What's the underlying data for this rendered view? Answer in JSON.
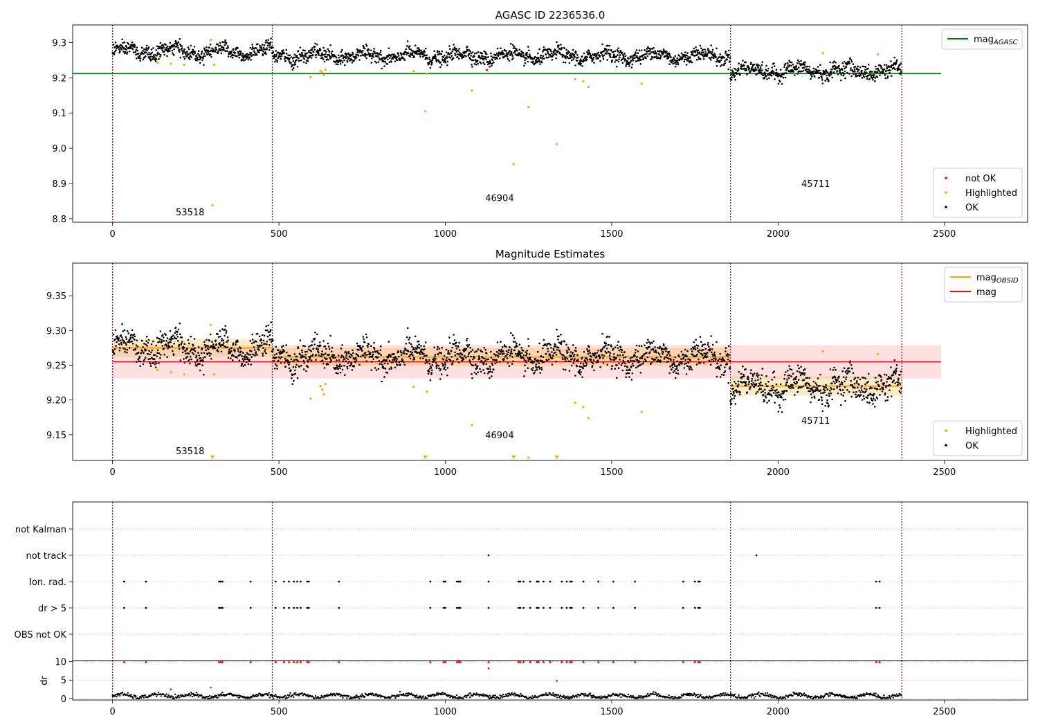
{
  "chart_data": [
    {
      "type": "scatter",
      "title": "AGASC ID 2236536.0",
      "ylim": [
        8.79,
        9.35
      ],
      "yticks": [
        8.8,
        8.9,
        9.0,
        9.1,
        9.2,
        9.3
      ],
      "xlim": [
        -120,
        2750
      ],
      "xticks": [
        0,
        500,
        1000,
        1500,
        2000,
        2500
      ],
      "grid": false,
      "mag_agasc": 9.212,
      "segments": [
        {
          "obsid": "53518",
          "start": 0,
          "end": 480,
          "mean": 9.275,
          "std": 0.013
        },
        {
          "obsid": "46904",
          "start": 480,
          "end": 1857,
          "mean": 9.262,
          "std": 0.013
        },
        {
          "obsid": "45711",
          "start": 1857,
          "end": 2372,
          "mean": 9.22,
          "std": 0.014
        }
      ],
      "boundaries": [
        0,
        480,
        1857,
        2372
      ],
      "obsid_labels": [
        {
          "text": "53518",
          "x": 190,
          "y": 8.81
        },
        {
          "text": "46904",
          "x": 1120,
          "y": 8.85
        },
        {
          "text": "45711",
          "x": 2070,
          "y": 8.89
        }
      ],
      "highlighted": [
        {
          "x": 135,
          "y": 9.243
        },
        {
          "x": 175,
          "y": 9.24
        },
        {
          "x": 215,
          "y": 9.237
        },
        {
          "x": 295,
          "y": 9.308
        },
        {
          "x": 300,
          "y": 8.838
        },
        {
          "x": 305,
          "y": 9.237
        },
        {
          "x": 595,
          "y": 9.202
        },
        {
          "x": 625,
          "y": 9.22
        },
        {
          "x": 630,
          "y": 9.215
        },
        {
          "x": 635,
          "y": 9.208
        },
        {
          "x": 640,
          "y": 9.223
        },
        {
          "x": 905,
          "y": 9.219
        },
        {
          "x": 940,
          "y": 9.105
        },
        {
          "x": 945,
          "y": 9.212
        },
        {
          "x": 1080,
          "y": 9.164
        },
        {
          "x": 1205,
          "y": 8.955
        },
        {
          "x": 1250,
          "y": 9.117
        },
        {
          "x": 1335,
          "y": 9.012
        },
        {
          "x": 1390,
          "y": 9.196
        },
        {
          "x": 1415,
          "y": 9.19
        },
        {
          "x": 1430,
          "y": 9.174
        },
        {
          "x": 1590,
          "y": 9.183
        },
        {
          "x": 2135,
          "y": 9.27
        },
        {
          "x": 2300,
          "y": 9.266
        }
      ],
      "not_ok": [
        {
          "x": 1125,
          "y": 9.222
        }
      ],
      "legends": [
        {
          "position": "upper-right",
          "entries": [
            {
              "label": "mag",
              "sub": "AGASC",
              "style": "line",
              "color": "#008000"
            }
          ]
        },
        {
          "position": "lower-right",
          "entries": [
            {
              "label": "not OK",
              "style": "dot",
              "color": "#ff0000"
            },
            {
              "label": "Highlighted",
              "style": "dot",
              "color": "#ffa500"
            },
            {
              "label": "OK",
              "style": "dot",
              "color": "#000000"
            }
          ]
        }
      ]
    },
    {
      "type": "scatter",
      "title": "Magnitude Estimates",
      "ylim": [
        9.113,
        9.397
      ],
      "yticks": [
        9.15,
        9.2,
        9.25,
        9.3,
        9.35
      ],
      "xlim": [
        -120,
        2750
      ],
      "xticks": [
        0,
        500,
        1000,
        1500,
        2000,
        2500
      ],
      "grid": false,
      "mag": 9.255,
      "mag_band": [
        9.231,
        9.279
      ],
      "offscale_markers": [
        300,
        940,
        1205,
        1335
      ],
      "obsid_labels": [
        {
          "text": "53518",
          "x": 190,
          "y": 9.122
        },
        {
          "text": "46904",
          "x": 1120,
          "y": 9.145
        },
        {
          "text": "45711",
          "x": 2070,
          "y": 9.166
        }
      ],
      "legends": [
        {
          "position": "upper-right",
          "entries": [
            {
              "label": "mag",
              "sub": "OBSID",
              "style": "line",
              "color": "#ffa500"
            },
            {
              "label": "mag",
              "style": "line",
              "color": "#ff0000"
            }
          ]
        },
        {
          "position": "lower-right",
          "entries": [
            {
              "label": "Highlighted",
              "style": "dot",
              "color": "#ffa500"
            },
            {
              "label": "OK",
              "style": "dot",
              "color": "#000000"
            }
          ]
        }
      ]
    },
    {
      "type": "scatter",
      "title": "",
      "xlim": [
        -120,
        2750
      ],
      "categories": [
        "not Kalman",
        "not track",
        "Ion. rad.",
        "dr > 5",
        "OBS not OK"
      ],
      "flags": {
        "not track": [
          1130,
          1935
        ],
        "Ion. rad.": [
          35,
          100,
          320,
          325,
          330,
          415,
          490,
          515,
          530,
          545,
          555,
          565,
          585,
          590,
          680,
          955,
          995,
          1000,
          1035,
          1040,
          1045,
          1130,
          1220,
          1225,
          1235,
          1255,
          1275,
          1280,
          1295,
          1315,
          1350,
          1365,
          1375,
          1380,
          1415,
          1460,
          1505,
          1570,
          1715,
          1750,
          1760,
          1765,
          2295,
          2305
        ],
        "dr > 5": [
          35,
          100,
          320,
          325,
          330,
          415,
          490,
          515,
          530,
          545,
          555,
          565,
          585,
          590,
          680,
          955,
          995,
          1000,
          1035,
          1040,
          1045,
          1130,
          1220,
          1225,
          1235,
          1255,
          1275,
          1280,
          1295,
          1315,
          1350,
          1365,
          1375,
          1380,
          1415,
          1460,
          1505,
          1570,
          1715,
          1750,
          1760,
          1765,
          2295,
          2305
        ]
      }
    },
    {
      "type": "scatter",
      "ylabel": "dr",
      "ylim": [
        -0.4,
        10.3
      ],
      "yticks": [
        0,
        5,
        10
      ],
      "xlim": [
        -120,
        2750
      ],
      "xticks": [
        0,
        500,
        1000,
        1500,
        2000,
        2500
      ],
      "clipped_value": 10,
      "dr_high": [
        {
          "x": 175,
          "y": 2.5
        },
        {
          "x": 295,
          "y": 3.0
        },
        {
          "x": 1130,
          "y": 8.2
        },
        {
          "x": 1335,
          "y": 4.8
        }
      ]
    }
  ]
}
